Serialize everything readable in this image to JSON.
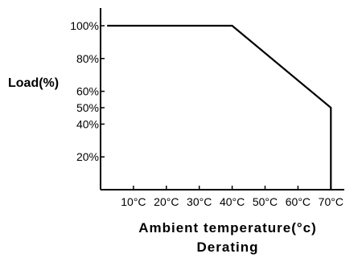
{
  "chart_data": {
    "type": "line",
    "title": "Derating",
    "xlabel": "Ambient temperature(°c)",
    "ylabel": "Load(%)",
    "xlim": [
      0,
      75
    ],
    "ylim": [
      0,
      105
    ],
    "x_ticks": [
      10,
      20,
      30,
      40,
      50,
      60,
      70
    ],
    "x_tick_labels": [
      "10°C",
      "20°C",
      "30°C",
      "40°C",
      "50°C",
      "60°C",
      "70°C"
    ],
    "y_ticks": [
      20,
      40,
      50,
      60,
      80,
      100
    ],
    "y_tick_labels": [
      "20%",
      "40%",
      "50%",
      "60%",
      "80%",
      "100%"
    ],
    "grid": false,
    "series": [
      {
        "x": [
          2,
          40,
          70,
          70
        ],
        "y": [
          100,
          100,
          50,
          0
        ]
      }
    ]
  }
}
